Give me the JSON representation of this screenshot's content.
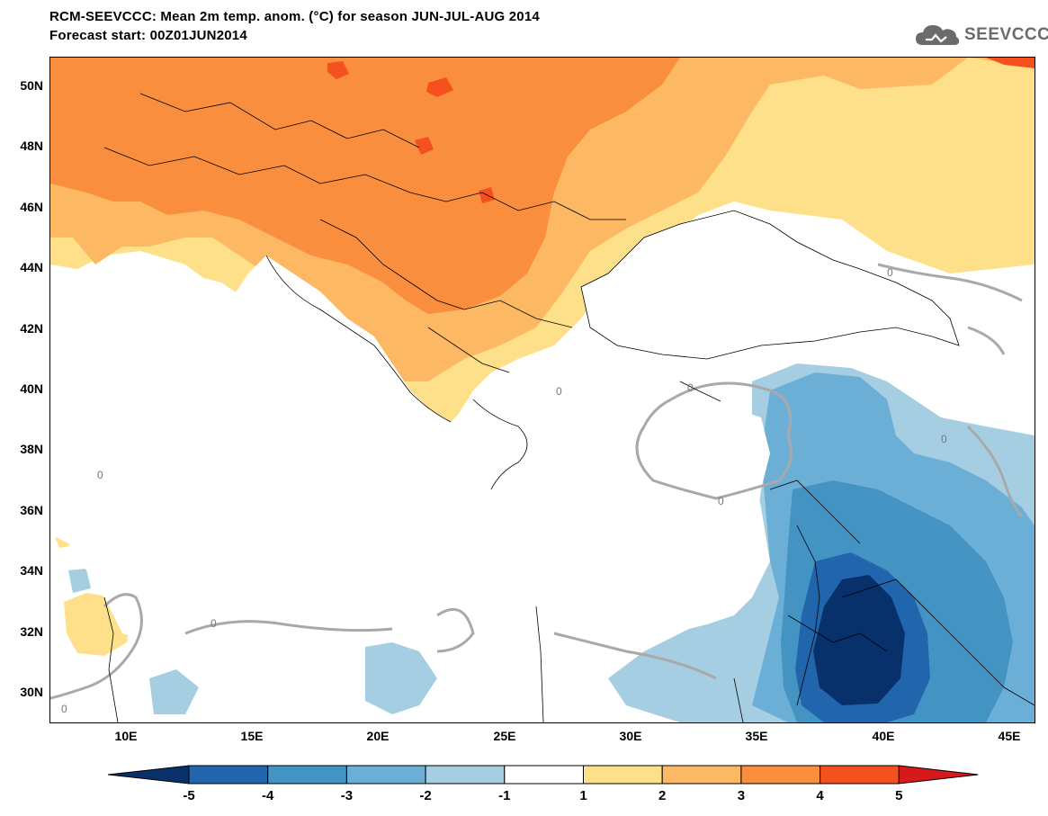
{
  "title_line1": "RCM-SEEVCCC: Mean 2m temp. anom. (°C) for season JUN-JUL-AUG 2014",
  "title_line2": "Forecast start: 00Z01JUN2014",
  "logo_text": "SEEVCCC",
  "logo_icon": "cloud-icon",
  "lat_labels": [
    "50N",
    "48N",
    "46N",
    "44N",
    "42N",
    "40N",
    "38N",
    "36N",
    "34N",
    "32N",
    "30N"
  ],
  "lon_labels": [
    "10E",
    "15E",
    "20E",
    "25E",
    "30E",
    "35E",
    "40E",
    "45E"
  ],
  "contour_label": "0",
  "colorbar": {
    "levels": [
      "-5",
      "-4",
      "-3",
      "-2",
      "-1",
      "1",
      "2",
      "3",
      "4",
      "5"
    ],
    "colors": [
      "#08306b",
      "#2166ac",
      "#4393c3",
      "#6baed6",
      "#a6cee3",
      "#ffffff",
      "#fee08b",
      "#fdb863",
      "#f98e3e",
      "#f4511e",
      "#d7191c"
    ]
  },
  "palette": {
    "land_warm1": "#fee08b",
    "land_warm2": "#fdb863",
    "land_warm3": "#f98e3e",
    "land_warm4": "#f4511e",
    "cool1": "#a6cee3",
    "cool2": "#6baed6",
    "cool3": "#4393c3",
    "cool4": "#2166ac",
    "cool5": "#08306b",
    "contour": "#a9a9a9"
  }
}
